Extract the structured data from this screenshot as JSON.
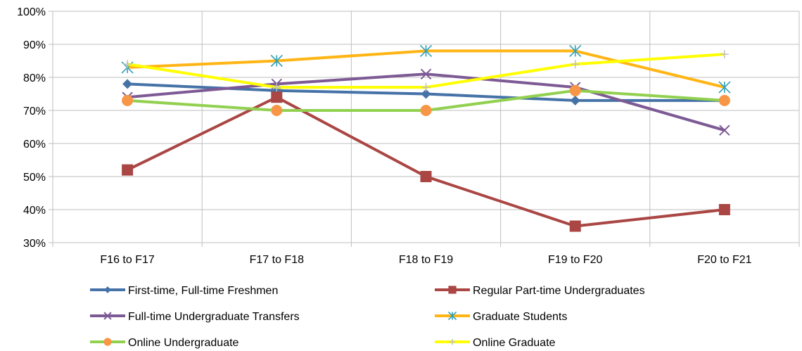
{
  "chart_data": {
    "type": "line",
    "title": "",
    "xlabel": "",
    "ylabel": "",
    "ylim": [
      30,
      100
    ],
    "y_ticks": [
      "30%",
      "40%",
      "50%",
      "60%",
      "70%",
      "80%",
      "90%",
      "100%"
    ],
    "y_tick_values": [
      30,
      40,
      50,
      60,
      70,
      80,
      90,
      100
    ],
    "categories": [
      "F16 to F17",
      "F17 to F18",
      "F18 to F19",
      "F19 to F20",
      "F20 to F21"
    ],
    "grid": "vertical and horizontal",
    "legend_position": "bottom",
    "series": [
      {
        "name": "First-time, Full-time Freshmen",
        "values": [
          78,
          76,
          75,
          73,
          73
        ],
        "color": "#4572A7",
        "marker": "diamond"
      },
      {
        "name": "Regular Part-time Undergraduates",
        "values": [
          52,
          74,
          50,
          35,
          40
        ],
        "color": "#AA4643",
        "marker": "square"
      },
      {
        "name": "Full-time Undergraduate Transfers",
        "values": [
          74,
          78,
          81,
          77,
          64
        ],
        "color": "#7D5A94",
        "marker": "x"
      },
      {
        "name": "Graduate Students",
        "values": [
          83,
          85,
          88,
          88,
          77
        ],
        "color": "#FFB515",
        "marker": "star"
      },
      {
        "name": "Online Undergraduate",
        "values": [
          73,
          70,
          70,
          76,
          73
        ],
        "color": "#92D050",
        "marker": "circle",
        "marker_color": "#F79646"
      },
      {
        "name": "Online Graduate",
        "values": [
          84,
          77,
          77,
          84,
          87
        ],
        "color": "#FFFF00",
        "marker": "plus",
        "marker_color": "#BFBFBF"
      }
    ]
  }
}
